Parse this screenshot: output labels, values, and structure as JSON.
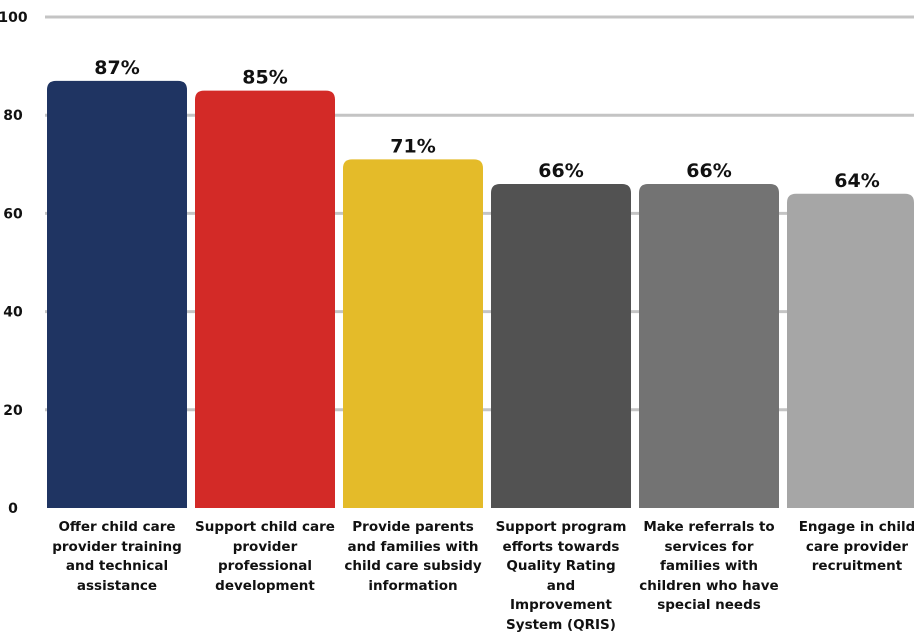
{
  "chart_data": {
    "type": "bar",
    "title": "",
    "xlabel": "",
    "ylabel": "",
    "ylim": [
      0,
      100
    ],
    "yticks": [
      0,
      20,
      40,
      60,
      80,
      100
    ],
    "grid": true,
    "categories": [
      "Offer child care provider training and technical assistance",
      "Support child care provider professional development",
      "Provide parents and families with child care subsidy information",
      "Support program efforts towards Quality Rating and Improvement System (QRIS)",
      "Make referrals to services for families with children who have special needs",
      "Engage in child care provider recruitment"
    ],
    "category_lines": [
      [
        "Offer child care",
        "provider training",
        "and technical",
        "assistance"
      ],
      [
        "Support child care",
        "provider",
        "professional",
        "development"
      ],
      [
        "Provide parents",
        "and families with",
        "child care subsidy",
        "information"
      ],
      [
        "Support program",
        "efforts towards",
        "Quality Rating and",
        "Improvement",
        "System (QRIS)"
      ],
      [
        "Make referrals to",
        "services for",
        "families with",
        "children who have",
        "special needs"
      ],
      [
        "Engage in child",
        "care provider",
        "recruitment"
      ]
    ],
    "values": [
      87,
      85,
      71,
      66,
      66,
      64
    ],
    "value_labels": [
      "87%",
      "85%",
      "71%",
      "66%",
      "66%",
      "64%"
    ],
    "colors": [
      "#1f3462",
      "#d32a27",
      "#e4bb29",
      "#525252",
      "#737373",
      "#a6a6a6"
    ]
  }
}
